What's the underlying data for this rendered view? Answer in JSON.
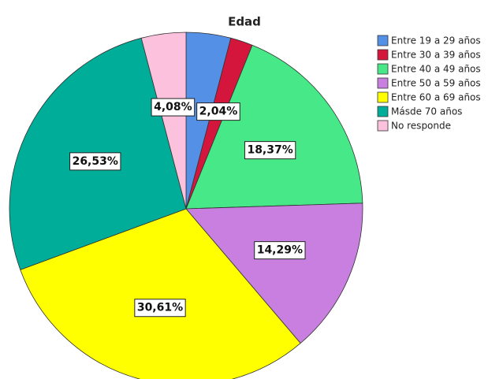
{
  "chart_data": {
    "type": "pie",
    "title": "Edad",
    "categories": [
      "Entre 19 a 29 años",
      "Entre 30 a 39 años",
      "Entre 40 a 49 años",
      "Entre 50 a 59 años",
      "Entre 60 a 69 años",
      "Másde 70 años",
      "No responde"
    ],
    "values": [
      4.08,
      2.04,
      18.37,
      14.29,
      30.61,
      26.53,
      4.08
    ],
    "value_labels": [
      null,
      "2,04%",
      "18,37%",
      "14,29%",
      "30,61%",
      "26,53%",
      "4,08%"
    ],
    "colors": [
      "#5390e6",
      "#d5163c",
      "#47e887",
      "#c87fe0",
      "#ffff00",
      "#00ad99",
      "#fbc1dd"
    ],
    "legend": "right"
  }
}
